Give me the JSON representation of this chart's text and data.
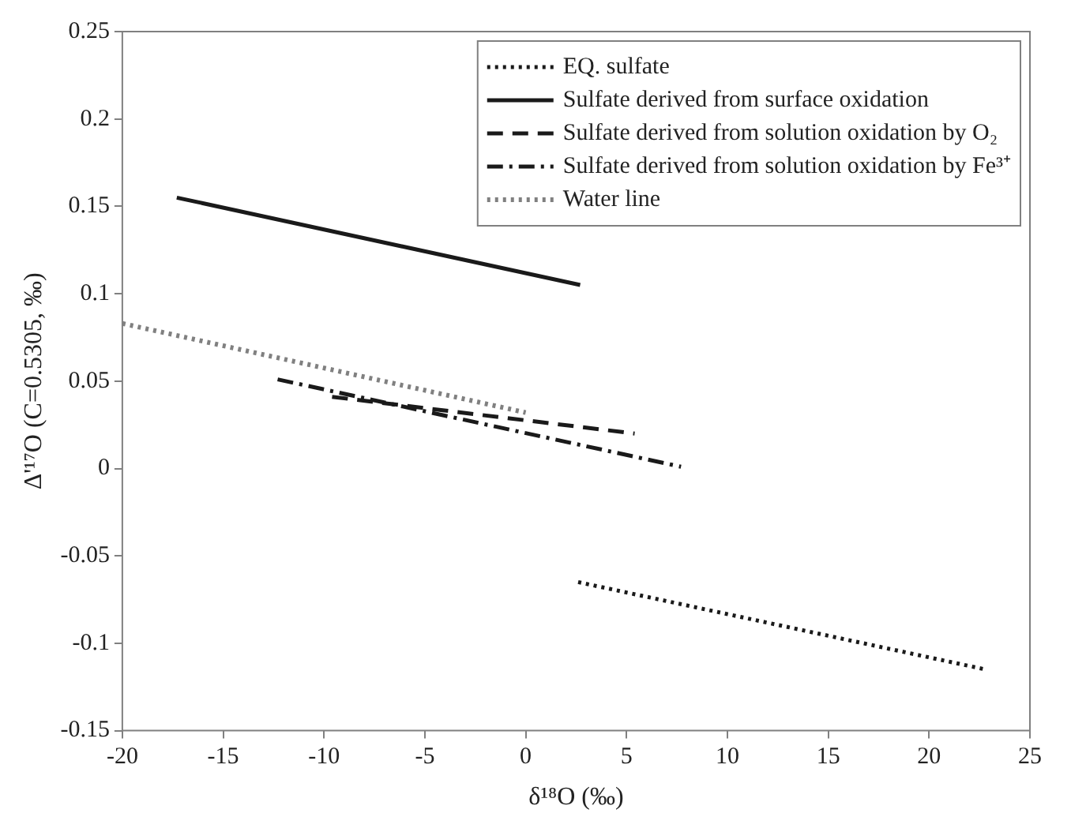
{
  "chart_data": {
    "type": "line",
    "xlabel": "δ¹⁸O (‰)",
    "ylabel": "Δ'¹⁷O (C=0.5305, ‰)",
    "xlim": [
      -20,
      25
    ],
    "xticks": [
      -20,
      -15,
      -10,
      -5,
      0,
      5,
      10,
      15,
      20,
      25
    ],
    "ylim": [
      -0.15,
      0.25
    ],
    "yticks": [
      -0.15,
      -0.1,
      -0.05,
      0,
      0.05,
      0.1,
      0.15,
      0.2,
      0.25
    ],
    "grid": false,
    "legend": "top right",
    "marker": "none",
    "series": [
      {
        "name": "EQ. sulfate",
        "color": "#1a1a1a",
        "line_style": "dotted",
        "x": [
          2.6,
          22.8
        ],
        "values": [
          -0.065,
          -0.115
        ]
      },
      {
        "name": "Sulfate derived from surface oxidation",
        "color": "#1a1a1a",
        "line_style": "solid",
        "x": [
          -17.3,
          2.7
        ],
        "values": [
          0.155,
          0.105
        ]
      },
      {
        "name": "Sulfate derived from solution oxidation by O₂",
        "color": "#1a1a1a",
        "line_style": "dashed",
        "x": [
          -9.6,
          5.4
        ],
        "values": [
          0.041,
          0.02
        ]
      },
      {
        "name": "Sulfate derived from solution oxidation by Fe³⁺",
        "color": "#1a1a1a",
        "line_style": "dashdot",
        "x": [
          -12.3,
          7.7
        ],
        "values": [
          0.051,
          0.001
        ]
      },
      {
        "name": "Water line",
        "color": "#808080",
        "line_style": "dotted",
        "x": [
          -20,
          0
        ],
        "values": [
          0.083,
          0.032
        ]
      }
    ]
  }
}
